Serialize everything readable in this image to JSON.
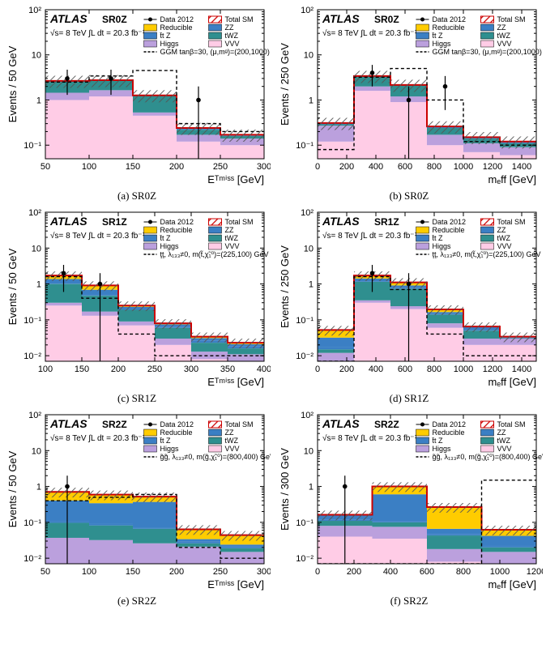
{
  "colors": {
    "reducible": "#ffcc00",
    "ttz": "#3b7fc4",
    "higgs": "#bba0dd",
    "zz": "#3b7fc4",
    "twz": "#2f8f8f",
    "vvv": "#ffcce6",
    "total": "#cc0000",
    "hatch": "#555555",
    "signal": "#000000"
  },
  "legend": {
    "data": "Data 2012",
    "total": "Total SM",
    "reducible": "Reducible",
    "zz": "ZZ",
    "ttz": "t̄t Z",
    "twz": "tWZ",
    "higgs": "Higgs",
    "vvv": "VVV"
  },
  "atlas": "ATLAS",
  "config_line": "√s= 8 TeV   ∫L dt = 20.3 fb⁻¹",
  "panels": [
    {
      "id": "a",
      "sr": "SR0Z",
      "caption": "(a) SR0Z",
      "xlabel": "E_T^{miss}  [GeV]",
      "ylabel": "Events / 50 GeV",
      "xmin": 50,
      "xmax": 300,
      "xticks": [
        50,
        100,
        150,
        200,
        250,
        300
      ],
      "ymin": 0.05,
      "ymax": 100,
      "ylogticks": [
        -1,
        0,
        1,
        2
      ],
      "signal_label": "GGM tanβ=30, (μ,mᵍ)=(200,1000) GeV",
      "stacks": {
        "vvv": [
          1.0,
          1.2,
          0.45,
          0.12,
          0.1
        ],
        "higgs": [
          0.45,
          0.45,
          0.08,
          0.05,
          0.04
        ],
        "twz": [
          1.1,
          1.0,
          0.7,
          0.05,
          0.02
        ],
        "ttz": [
          0.05,
          0.05,
          0.02,
          0.01,
          0.005
        ],
        "zz": [
          0.05,
          0.05,
          0.02,
          0.01,
          0.005
        ],
        "reducible": [
          0.0,
          0.0,
          0.0,
          0.0,
          0.0
        ]
      },
      "total": [
        2.65,
        2.75,
        1.27,
        0.24,
        0.17
      ],
      "signal": [
        2.5,
        3.4,
        4.5,
        0.3,
        0.2
      ],
      "data": [
        [
          75,
          3,
          1.7,
          1.7
        ],
        [
          125,
          3,
          1.7,
          1.7
        ],
        [
          225,
          1,
          1,
          1
        ]
      ]
    },
    {
      "id": "b",
      "sr": "SR0Z",
      "caption": "(b) SR0Z",
      "xlabel": "m_{eff}  [GeV]",
      "ylabel": "Events / 250 GeV",
      "xmin": 0,
      "xmax": 1500,
      "xticks": [
        0,
        200,
        400,
        600,
        800,
        1000,
        1200,
        1400
      ],
      "ymin": 0.05,
      "ymax": 100,
      "ylogticks": [
        -1,
        0,
        1,
        2
      ],
      "signal_label": "GGM tanβ=30, (μ,mᵍ)=(200,1000) GeV",
      "stacks": {
        "vvv": [
          0.12,
          1.6,
          0.9,
          0.1,
          0.07,
          0.06
        ],
        "higgs": [
          0.15,
          0.4,
          0.3,
          0.07,
          0.04,
          0.03
        ],
        "twz": [
          0.02,
          1.3,
          0.9,
          0.07,
          0.03,
          0.02
        ],
        "ttz": [
          0.01,
          0.05,
          0.03,
          0.01,
          0.005,
          0.005
        ],
        "zz": [
          0.01,
          0.05,
          0.03,
          0.01,
          0.005,
          0.005
        ],
        "reducible": [
          0.0,
          0.0,
          0.0,
          0.0,
          0.0,
          0.0
        ]
      },
      "total": [
        0.31,
        3.4,
        2.16,
        0.26,
        0.15,
        0.12
      ],
      "signal": [
        0.08,
        3.2,
        5.0,
        1.0,
        0.12,
        0.1
      ],
      "data": [
        [
          375,
          4,
          2,
          2
        ],
        [
          625,
          1,
          1,
          1
        ],
        [
          875,
          2,
          1.4,
          1.4
        ]
      ]
    },
    {
      "id": "c",
      "sr": "SR1Z",
      "caption": "(c) SR1Z",
      "xlabel": "E_T^{miss}  [GeV]",
      "ylabel": "Events / 50 GeV",
      "xmin": 100,
      "xmax": 400,
      "xticks": [
        100,
        150,
        200,
        250,
        300,
        350,
        400
      ],
      "ymin": 0.007,
      "ymax": 100,
      "ylogticks": [
        -2,
        -1,
        0,
        1,
        2
      ],
      "signal_label": "ţţ, λ₁₃₃≠0, m(t̃,χ̃₁⁰)=(225,100) GeV",
      "stacks": {
        "vvv": [
          0.25,
          0.13,
          0.07,
          0.02,
          0.008,
          0.007
        ],
        "higgs": [
          0.05,
          0.04,
          0.02,
          0.01,
          0.005,
          0.004
        ],
        "twz": [
          0.7,
          0.3,
          0.1,
          0.03,
          0.01,
          0.005
        ],
        "ttz": [
          0.02,
          0.02,
          0.01,
          0.005,
          0.003,
          0.002
        ],
        "zz": [
          0.35,
          0.2,
          0.03,
          0.01,
          0.005,
          0.003
        ],
        "reducible": [
          0.35,
          0.22,
          0.02,
          0.005,
          0.003,
          0.002
        ]
      },
      "total": [
        1.72,
        0.91,
        0.25,
        0.08,
        0.034,
        0.023
      ],
      "signal": [
        1.6,
        0.4,
        0.04,
        0.01,
        0.01,
        0.01
      ],
      "data": [
        [
          125,
          2,
          1.4,
          1.4
        ],
        [
          175,
          1,
          1,
          1
        ]
      ]
    },
    {
      "id": "d",
      "sr": "SR1Z",
      "caption": "(d) SR1Z",
      "xlabel": "m_{eff}  [GeV]",
      "ylabel": "Events / 250 GeV",
      "xmin": 0,
      "xmax": 1500,
      "xticks": [
        0,
        200,
        400,
        600,
        800,
        1000,
        1200,
        1400
      ],
      "ymin": 0.007,
      "ymax": 100,
      "ylogticks": [
        -2,
        -1,
        0,
        1,
        2
      ],
      "signal_label": "ţţ, λ₁₃₃≠0, m(t̃,χ̃₁⁰)=(225,100) GeV",
      "stacks": {
        "vvv": [
          0.007,
          0.3,
          0.2,
          0.06,
          0.02,
          0.02
        ],
        "higgs": [
          0.005,
          0.05,
          0.04,
          0.02,
          0.01,
          0.01
        ],
        "twz": [
          0.003,
          0.8,
          0.5,
          0.06,
          0.02,
          0.001
        ],
        "ttz": [
          0.002,
          0.02,
          0.02,
          0.005,
          0.003,
          0.001
        ],
        "zz": [
          0.015,
          0.25,
          0.15,
          0.02,
          0.01,
          0.001
        ],
        "reducible": [
          0.02,
          0.3,
          0.2,
          0.03,
          0.002,
          0.001
        ]
      },
      "total": [
        0.052,
        1.72,
        1.11,
        0.195,
        0.065,
        0.034
      ],
      "signal": [
        0.007,
        1.6,
        0.7,
        0.04,
        0.01,
        0.01
      ],
      "data": [
        [
          375,
          2,
          1.4,
          1.4
        ],
        [
          625,
          1,
          1,
          1
        ]
      ]
    },
    {
      "id": "e",
      "sr": "SR2Z",
      "caption": "(e) SR2Z",
      "xlabel": "E_T^{miss}  [GeV]",
      "ylabel": "Events / 50 GeV",
      "xmin": 50,
      "xmax": 300,
      "xticks": [
        50,
        100,
        150,
        200,
        250,
        300
      ],
      "ymin": 0.007,
      "ymax": 100,
      "ylogticks": [
        -2,
        -1,
        0,
        1,
        2
      ],
      "signal_label": "g̃g̃, λ₁₃₃≠0, m(g̃,χ̃₁⁰)=(800,400) GeV",
      "stacks": {
        "vvv": [
          0.007,
          0.007,
          0.006,
          0.006,
          0.005
        ],
        "higgs": [
          0.03,
          0.025,
          0.02,
          0.015,
          0.01
        ],
        "twz": [
          0.06,
          0.05,
          0.04,
          0.005,
          0.004
        ],
        "ttz": [
          0.01,
          0.01,
          0.005,
          0.003,
          0.002
        ],
        "zz": [
          0.3,
          0.25,
          0.3,
          0.005,
          0.003
        ],
        "reducible": [
          0.3,
          0.25,
          0.15,
          0.03,
          0.02
        ]
      },
      "total": [
        0.707,
        0.592,
        0.521,
        0.064,
        0.044
      ],
      "signal": [
        0.4,
        0.5,
        0.6,
        0.02,
        0.01
      ],
      "data": [
        [
          75,
          1,
          1,
          1
        ]
      ]
    },
    {
      "id": "f",
      "sr": "SR2Z",
      "caption": "(f) SR2Z",
      "xlabel": "m_{eff}  [GeV]",
      "ylabel": "Events / 300 GeV",
      "xmin": 0,
      "xmax": 1200,
      "xticks": [
        0,
        200,
        400,
        600,
        800,
        1000,
        1200
      ],
      "ymin": 0.007,
      "ymax": 100,
      "ylogticks": [
        -2,
        -1,
        0,
        1,
        2
      ],
      "signal_label": "g̃g̃, λ₁₃₃≠0, m(g̃,χ̃₁⁰)=(800,400) GeV",
      "stacks": {
        "vvv": [
          0.04,
          0.035,
          0.008,
          0.007
        ],
        "higgs": [
          0.04,
          0.04,
          0.01,
          0.008
        ],
        "twz": [
          0.03,
          0.025,
          0.025,
          0.005
        ],
        "ttz": [
          0.01,
          0.005,
          0.003,
          0.002
        ],
        "zz": [
          0.04,
          0.5,
          0.02,
          0.02
        ],
        "reducible": [
          0.003,
          0.4,
          0.2,
          0.02
        ]
      },
      "total": [
        0.163,
        1.005,
        0.266,
        0.062
      ],
      "signal": [
        0.007,
        0.007,
        0.007,
        1.5
      ],
      "data": [
        [
          150,
          1,
          1,
          1
        ]
      ]
    }
  ]
}
